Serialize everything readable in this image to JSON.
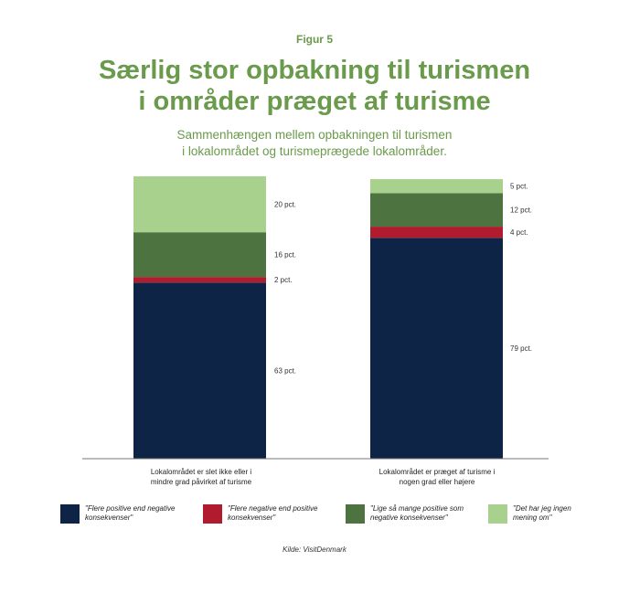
{
  "figure_label": "Figur 5",
  "title_line1": "Særlig stor opbakning til turismen",
  "title_line2": "i områder præget af turisme",
  "subtitle_line1": "Sammenhængen mellem opbakningen til turismen",
  "subtitle_line2": "i lokalområdet og turismeprægede lokalområder.",
  "source": "Kilde: VisitDenmark",
  "colors": {
    "positive": "#0d2447",
    "negative": "#b01c2e",
    "equal": "#4d7340",
    "dont_know": "#a9d18e",
    "title_green": "#6a9a4c"
  },
  "chart_data": {
    "type": "bar",
    "stacked": true,
    "ylim": [
      0,
      101
    ],
    "categories": [
      {
        "line1": "Lokalområdet er slet ikke eller i",
        "line2": "mindre grad påvirket af turisme"
      },
      {
        "line1": "Lokalområdet er præget af turisme i",
        "line2": "nogen grad eller højere"
      }
    ],
    "series": [
      {
        "name": "\"Flere positive end negative konsekvenser\"",
        "name_line1": "\"Flere positive end negative",
        "name_line2": "konsekvenser\"",
        "key": "positive",
        "values": [
          63,
          79
        ],
        "labels": [
          "63 pct.",
          "79 pct."
        ]
      },
      {
        "name": "\"Flere negative end positive konsekvenser\"",
        "name_line1": "\"Flere negative end positive",
        "name_line2": "konsekvenser\"",
        "key": "negative",
        "values": [
          2,
          4
        ],
        "labels": [
          "2 pct.",
          "4 pct."
        ]
      },
      {
        "name": "\"Lige så mange positive som negative konsekvenser\"",
        "name_line1": "\"Lige så mange positive som",
        "name_line2": "negative konsekvenser\"",
        "key": "equal",
        "values": [
          16,
          12
        ],
        "labels": [
          "16 pct.",
          "12 pct."
        ]
      },
      {
        "name": "\"Det har jeg ingen mening om\"",
        "name_line1": "\"Det har jeg ingen",
        "name_line2": "mening om\"",
        "key": "dont_know",
        "values": [
          20,
          5
        ],
        "labels": [
          "20 pct.",
          "5 pct."
        ]
      }
    ]
  }
}
